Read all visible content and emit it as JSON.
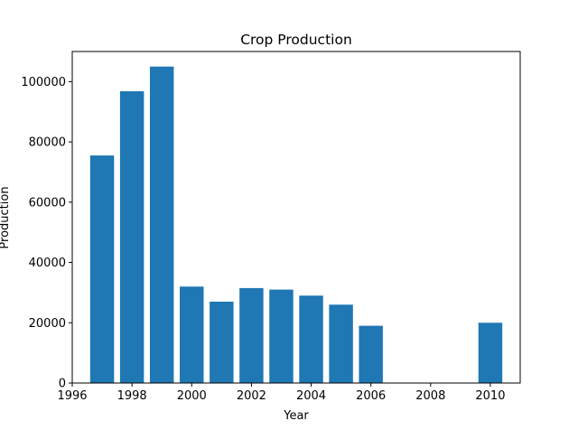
{
  "chart_data": {
    "type": "bar",
    "title": "Crop Production",
    "xlabel": "Year",
    "ylabel": "Production",
    "x": [
      1997,
      1998,
      1999,
      2000,
      2001,
      2002,
      2003,
      2004,
      2005,
      2006,
      2010
    ],
    "values": [
      75500,
      96800,
      105000,
      32000,
      27000,
      31500,
      31000,
      29000,
      26000,
      19000,
      20000
    ],
    "xlim": [
      1996,
      2011
    ],
    "ylim": [
      0,
      110000
    ],
    "xticks": [
      1996,
      1998,
      2000,
      2002,
      2004,
      2006,
      2008,
      2010
    ],
    "yticks": [
      0,
      20000,
      40000,
      60000,
      80000,
      100000
    ],
    "bar_color": "#1f77b4",
    "grid": false,
    "legend": null
  }
}
